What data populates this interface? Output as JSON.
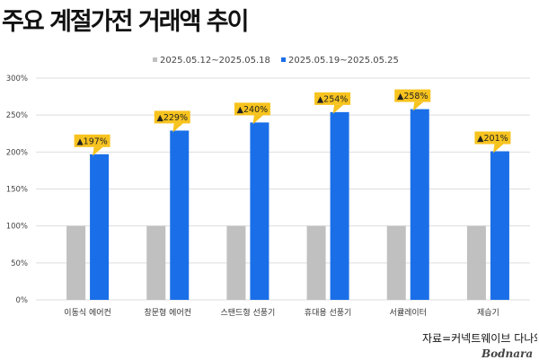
{
  "title": "주요 계절가전 거래액 추이",
  "source": "자료=커넥트웨이브 다나와",
  "watermark": "Bodnara",
  "colors": {
    "series1": "#c0c0c0",
    "series2": "#1a6fe8",
    "callout_fill": "#f7c31e",
    "callout_text": "#222222",
    "grid": "#dddddd",
    "axis_text": "#444444"
  },
  "chart_data": {
    "type": "bar",
    "categories": [
      "이동식 에어컨",
      "창문형 에어컨",
      "스탠드형 선풍기",
      "휴대용 선풍기",
      "서큘레이터",
      "제습기"
    ],
    "series": [
      {
        "name": "2025.05.12~2025.05.18",
        "values": [
          100,
          100,
          100,
          100,
          100,
          100
        ]
      },
      {
        "name": "2025.05.19~2025.05.25",
        "values": [
          197,
          229,
          240,
          254,
          258,
          201
        ]
      }
    ],
    "data_labels": [
      "▲197%",
      "▲229%",
      "▲240%",
      "▲254%",
      "▲258%",
      "▲201%"
    ],
    "y_ticks": [
      "0%",
      "50%",
      "100%",
      "150%",
      "200%",
      "250%",
      "300%"
    ],
    "ylim": [
      0,
      300
    ],
    "grid": true,
    "legend_position": "top-center"
  }
}
